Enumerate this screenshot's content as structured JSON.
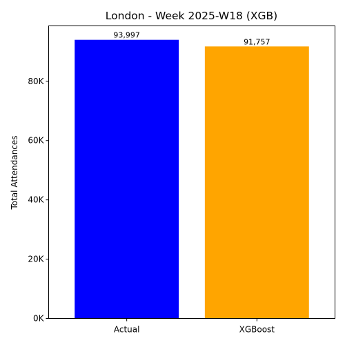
{
  "chart_data": {
    "type": "bar",
    "title": "London - Week 2025-W18 (XGB)",
    "xlabel": "",
    "ylabel": "Total Attendances",
    "categories": [
      "Actual",
      "XGBoost"
    ],
    "values": [
      93997,
      91757
    ],
    "data_labels": [
      "93,997",
      "91,757"
    ],
    "bar_colors": [
      "#0000ff",
      "#ffa500"
    ],
    "ylim": [
      0,
      98697
    ],
    "yticks": [
      0,
      20000,
      40000,
      60000,
      80000
    ],
    "ytick_labels": [
      "0K",
      "20K",
      "40K",
      "60K",
      "80K"
    ],
    "grid": false,
    "legend": "none"
  }
}
